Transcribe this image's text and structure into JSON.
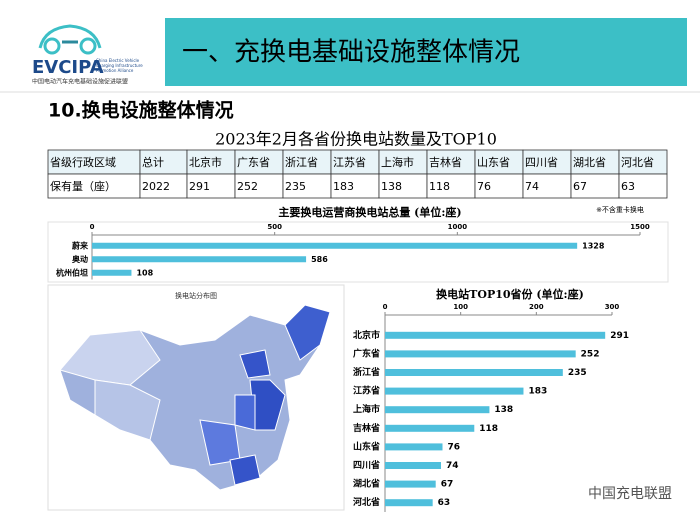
{
  "header": {
    "logo": "EVCIPA",
    "logo_subtitle": "China Electric Vehicle Charging Infrastructure Promotion Alliance",
    "organization": "中国电动汽车充电基础设施促进联盟",
    "title": "一、充换电基础设施整体情况"
  },
  "section_title": "10.换电设施整体情况",
  "table": {
    "title": "2023年2月各省份换电站数量及TOP10",
    "rows": [
      [
        "省级行政区域",
        "总计",
        "北京市",
        "广东省",
        "浙江省",
        "江苏省",
        "上海市",
        "吉林省",
        "山东省",
        "四川省",
        "湖北省",
        "河北省"
      ],
      [
        "保有量（座）",
        "2022",
        "291",
        "252",
        "235",
        "183",
        "138",
        "118",
        "76",
        "74",
        "67",
        "63"
      ]
    ]
  },
  "chart_data": [
    {
      "type": "hbar",
      "title": "主要换电运营商换电站总量 (单位:座)",
      "note": "※不含重卡换电",
      "categories": [
        "蔚来",
        "奥动",
        "杭州伯坦"
      ],
      "values": [
        1328,
        586,
        108
      ],
      "color": "#4fbfdc",
      "xlim": [
        0,
        1500
      ],
      "xticks": [
        0,
        500,
        1000,
        1500
      ]
    },
    {
      "type": "hbar",
      "title": "换电站TOP10省份 (单位:座)",
      "categories": [
        "北京市",
        "广东省",
        "浙江省",
        "江苏省",
        "上海市",
        "吉林省",
        "山东省",
        "四川省",
        "湖北省",
        "河北省"
      ],
      "values": [
        291,
        252,
        235,
        183,
        138,
        118,
        76,
        74,
        67,
        63
      ],
      "color": "#4fbfdc",
      "xlim": [
        0,
        300
      ],
      "xticks": [
        0,
        100,
        200,
        300
      ]
    }
  ],
  "map": {
    "title": "换电站分布图"
  },
  "watermark": "中国充电联盟"
}
